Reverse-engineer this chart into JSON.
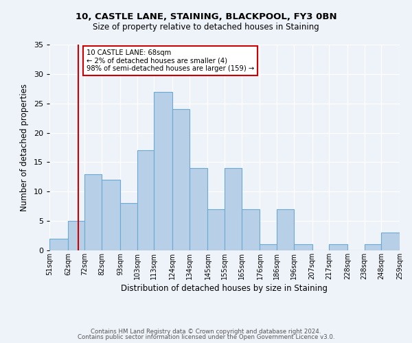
{
  "title": "10, CASTLE LANE, STAINING, BLACKPOOL, FY3 0BN",
  "subtitle": "Size of property relative to detached houses in Staining",
  "xlabel": "Distribution of detached houses by size in Staining",
  "ylabel": "Number of detached properties",
  "bin_labels": [
    "51sqm",
    "62sqm",
    "72sqm",
    "82sqm",
    "93sqm",
    "103sqm",
    "113sqm",
    "124sqm",
    "134sqm",
    "145sqm",
    "155sqm",
    "165sqm",
    "176sqm",
    "186sqm",
    "196sqm",
    "207sqm",
    "217sqm",
    "228sqm",
    "238sqm",
    "248sqm",
    "259sqm"
  ],
  "bar_values": [
    2,
    5,
    13,
    12,
    8,
    17,
    27,
    24,
    14,
    7,
    14,
    7,
    1,
    7,
    1,
    0,
    1,
    0,
    1,
    3
  ],
  "bar_color": "#b8cfe8",
  "bar_edge_color": "#6aaad4",
  "property_line_x": 68,
  "annotation_text": "10 CASTLE LANE: 68sqm\n← 2% of detached houses are smaller (4)\n98% of semi-detached houses are larger (159) →",
  "annotation_box_color": "#ffffff",
  "annotation_box_edge": "#cc0000",
  "vline_color": "#cc0000",
  "ylim": [
    0,
    35
  ],
  "yticks": [
    0,
    5,
    10,
    15,
    20,
    25,
    30,
    35
  ],
  "footer1": "Contains HM Land Registry data © Crown copyright and database right 2024.",
  "footer2": "Contains public sector information licensed under the Open Government Licence v3.0.",
  "bg_color": "#eef2f9",
  "plot_bg_color": "#eef2f9"
}
